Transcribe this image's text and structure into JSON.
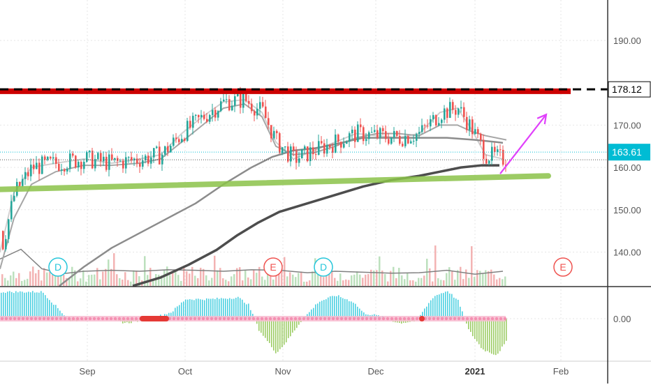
{
  "chart_data": [
    {
      "type": "candlestick",
      "x_ticks": [
        "Sep",
        "Oct",
        "Nov",
        "Dec",
        "2021",
        "Feb"
      ],
      "y_ticks": [
        "190.00",
        "170.00",
        "160.00",
        "150.00",
        "140.00"
      ],
      "ylim": [
        132,
        200
      ],
      "grid": true,
      "price_labels": [
        {
          "label": "178.12",
          "value": 178.12,
          "style": "black-dashed-line",
          "color": "#000000"
        },
        {
          "label": "163.61",
          "value": 163.61,
          "style": "dotted-cyan-line",
          "color": "#00bcd4"
        }
      ],
      "annotations": {
        "resistance_line": {
          "start": [
            0,
            178.0
          ],
          "end": [
            817,
            178.0
          ],
          "color": "#cc0000"
        },
        "support_line": {
          "start": [
            0,
            154.8
          ],
          "end": [
            785,
            158.0
          ],
          "color": "#8bc34a"
        },
        "arrow": {
          "from": [
            716,
            158.5
          ],
          "to": [
            782,
            172.5
          ],
          "color": "#e040fb"
        }
      },
      "event_markers": [
        {
          "label": "D",
          "x": 83,
          "color": "#26c6da"
        },
        {
          "label": "E",
          "x": 391,
          "color": "#ef5350"
        },
        {
          "label": "D",
          "x": 463,
          "color": "#26c6da"
        },
        {
          "label": "E",
          "x": 806,
          "color": "#ef5350"
        }
      ],
      "series": [
        {
          "name": "",
          "kind": "moving-average",
          "color": "#cfcfcf",
          "x": [
            0,
            20,
            45,
            80,
            120,
            160,
            200,
            230,
            260,
            290,
            320,
            350,
            375,
            395,
            420,
            450,
            480,
            510,
            540,
            570,
            600,
            630,
            655,
            675,
            695,
            720
          ],
          "y": [
            140,
            154,
            160,
            161,
            162,
            161,
            162,
            163,
            168,
            172,
            175.5,
            176,
            173,
            166,
            162,
            164,
            166,
            168,
            167.5,
            167,
            168,
            173,
            174,
            169,
            163,
            162
          ]
        },
        {
          "name": "",
          "kind": "moving-average",
          "color": "#a6a6a6",
          "x": [
            0,
            20,
            45,
            80,
            120,
            160,
            200,
            230,
            260,
            290,
            320,
            350,
            375,
            395,
            420,
            450,
            480,
            510,
            540,
            570,
            600,
            630,
            655,
            675,
            695,
            725
          ],
          "y": [
            136,
            148,
            156,
            159,
            160.5,
            160.5,
            161,
            162,
            166,
            170,
            174,
            175,
            172,
            165,
            163,
            163.5,
            165,
            167,
            168,
            168,
            167.5,
            170,
            170,
            168.5,
            167.5,
            166.5
          ]
        },
        {
          "name": "",
          "kind": "moving-average",
          "color": "#8c8c8c",
          "x": [
            85,
            120,
            160,
            200,
            240,
            280,
            320,
            360,
            390,
            420,
            450,
            480,
            520,
            560,
            600,
            640,
            680,
            710,
            720
          ],
          "y": [
            132,
            136.5,
            141,
            144.5,
            148,
            151.5,
            156,
            160,
            162.5,
            164,
            164.5,
            165.5,
            167,
            167,
            167,
            167,
            166.5,
            166,
            165.8
          ]
        },
        {
          "name": "",
          "kind": "moving-average",
          "color": "#4d4d4d",
          "x": [
            190,
            230,
            270,
            310,
            340,
            370,
            400,
            440,
            480,
            520,
            560,
            600,
            630,
            660,
            690,
            715
          ],
          "y": [
            132,
            134,
            137,
            140.5,
            144,
            147,
            149.5,
            151.5,
            153.5,
            155.5,
            157,
            158,
            159,
            160,
            160.5,
            160.5
          ]
        },
        {
          "name": "",
          "kind": "volume-average",
          "color": "#808080",
          "x": [
            0,
            30,
            60,
            90,
            120,
            160,
            200,
            240,
            280,
            320,
            360,
            400,
            440,
            480,
            520,
            560,
            600,
            640,
            680,
            720
          ],
          "y": [
            0.55,
            0.75,
            0.35,
            0.25,
            0.3,
            0.32,
            0.3,
            0.33,
            0.32,
            0.3,
            0.33,
            0.32,
            0.27,
            0.3,
            0.28,
            0.26,
            0.27,
            0.32,
            0.24,
            0.3
          ]
        }
      ]
    },
    {
      "type": "histogram",
      "y_ticks": [
        "0.00"
      ],
      "series": [
        {
          "name": "",
          "positive_color": "#4dd0e1",
          "negative_color": "#9ccc65",
          "x": [
            0,
            60,
            100,
            140,
            180,
            220,
            245,
            265,
            300,
            340,
            355,
            370,
            395,
            410,
            430,
            455,
            480,
            505,
            520,
            545,
            570,
            595,
            620,
            640,
            655,
            670,
            690,
            710,
            725
          ],
          "y": [
            0.48,
            0.48,
            -0.05,
            0.03,
            -0.08,
            0.02,
            0.12,
            0.35,
            0.35,
            0.38,
            0.25,
            -0.2,
            -0.62,
            -0.4,
            -0.05,
            0.3,
            0.42,
            0.3,
            0.1,
            0.04,
            -0.08,
            -0.04,
            0.4,
            0.5,
            0.32,
            -0.2,
            -0.55,
            -0.65,
            -0.4
          ]
        }
      ]
    }
  ]
}
